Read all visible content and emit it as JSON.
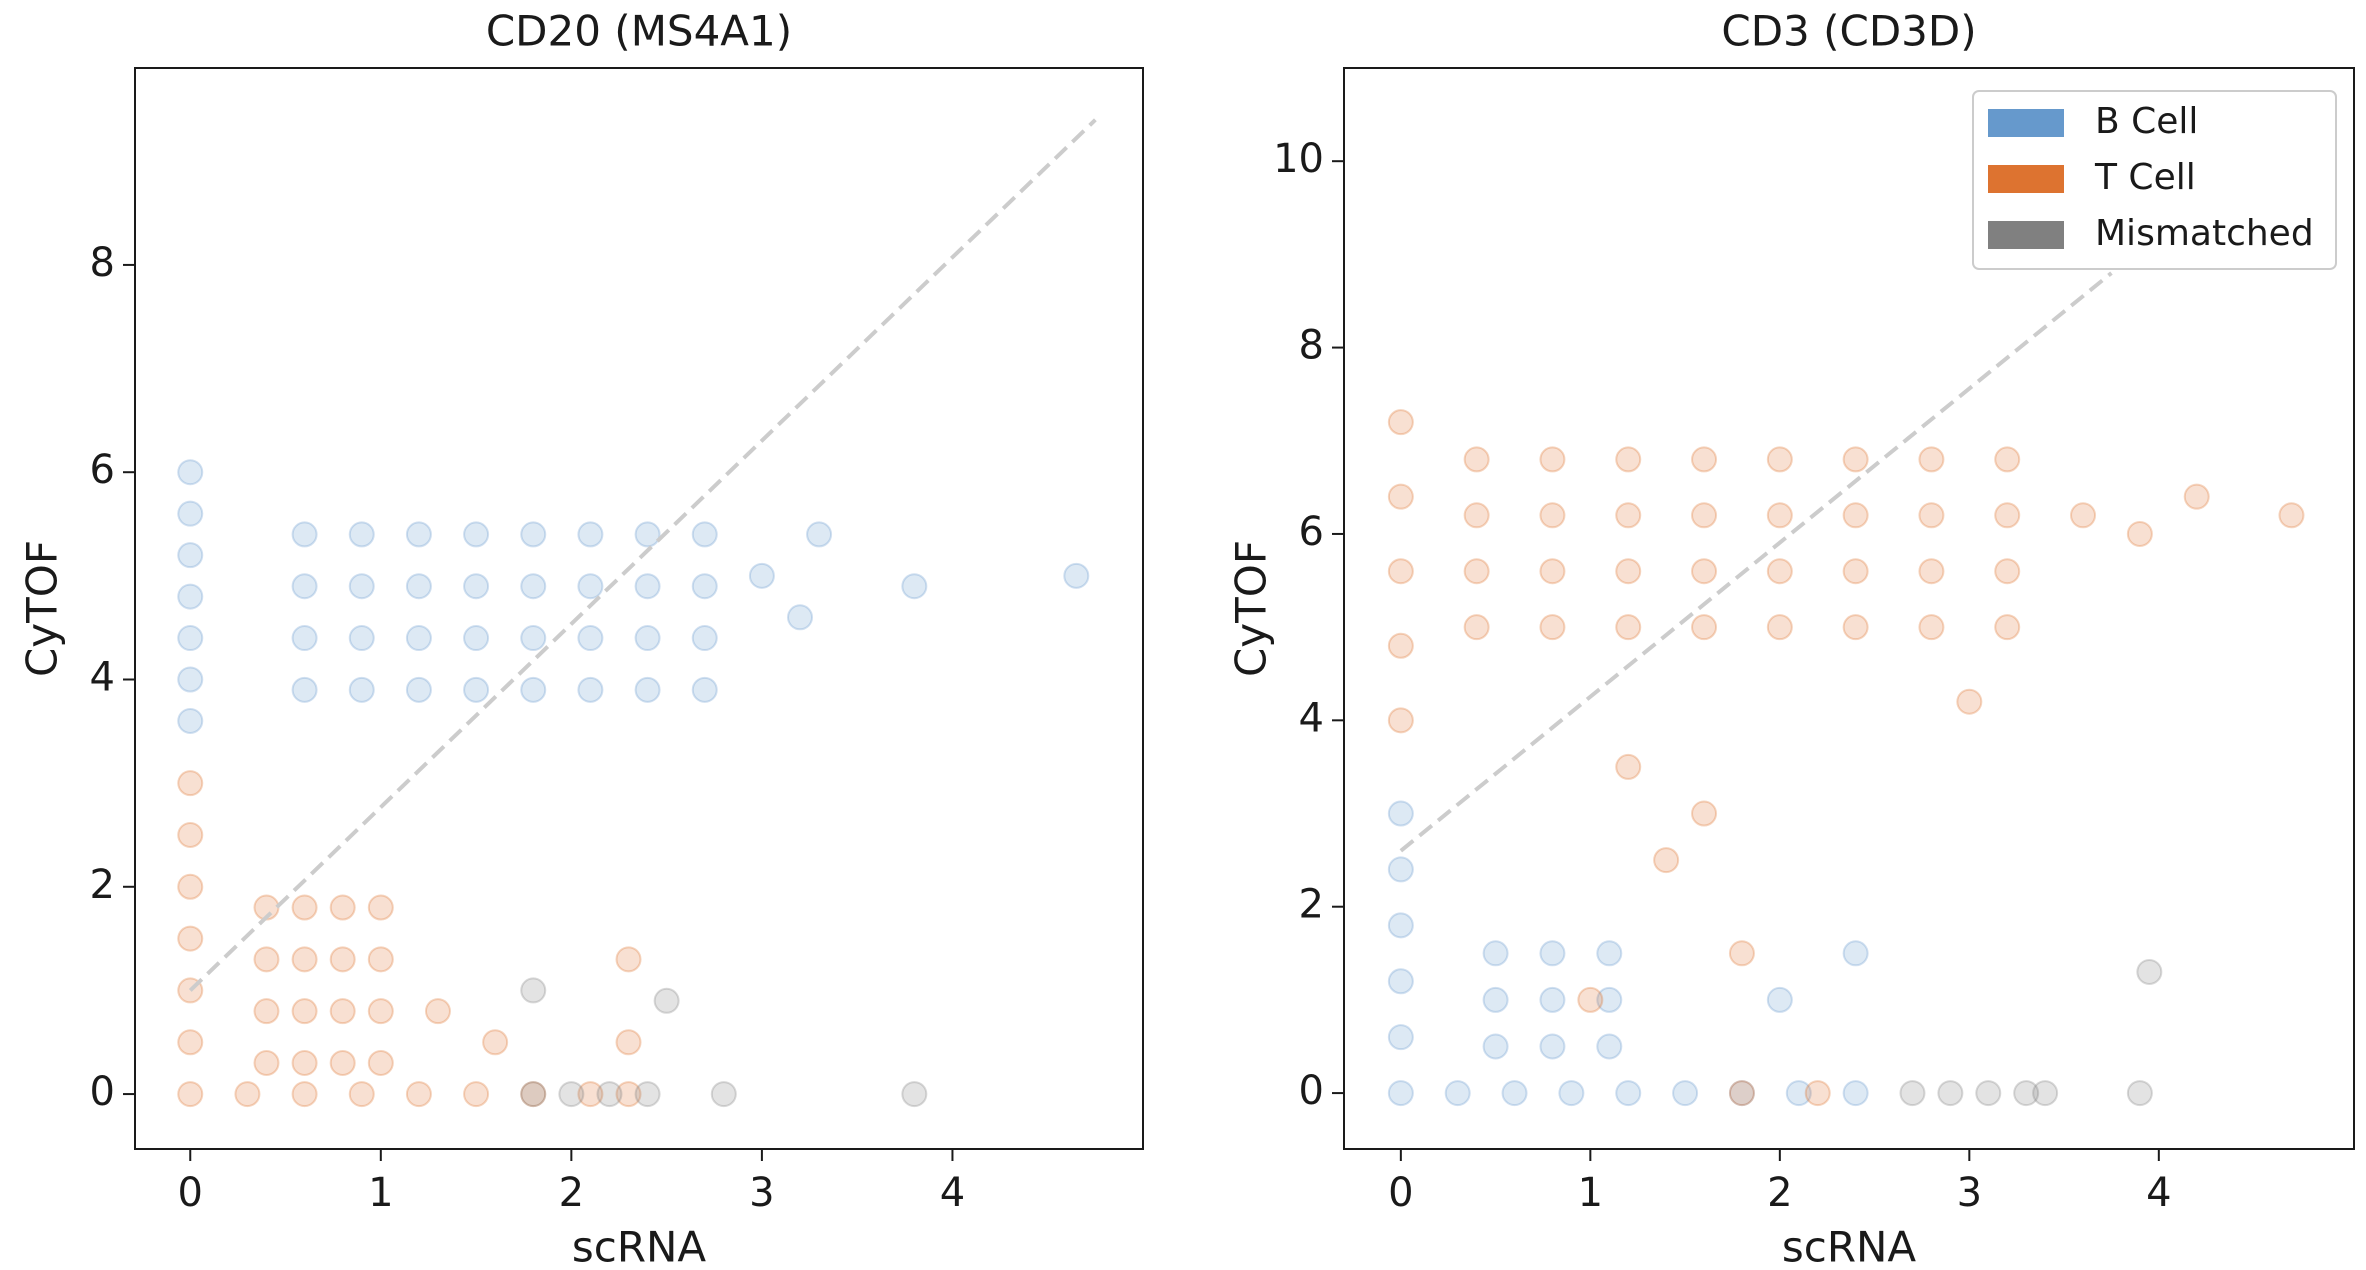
{
  "chart_data": [
    {
      "type": "scatter",
      "title": "CD20 (MS4A1)",
      "xlabel": "scRNA",
      "ylabel": "CyTOF",
      "xlim": [
        -0.29,
        5.0
      ],
      "ylim": [
        -0.53,
        9.9
      ],
      "xticks": [
        0,
        1,
        2,
        3,
        4
      ],
      "yticks": [
        0,
        2,
        4,
        6,
        8
      ],
      "reference_line": {
        "x": [
          0,
          4.75
        ],
        "y": [
          1,
          9.4
        ],
        "color": "#cccccc",
        "style": "dashed"
      },
      "series": [
        {
          "color": "#6699cc",
          "x": [
            0,
            0,
            0,
            0,
            0,
            0,
            0,
            0.6,
            0.9,
            1.2,
            1.5,
            1.8,
            2.1,
            2.4,
            2.7,
            0.6,
            0.9,
            1.2,
            1.5,
            1.8,
            2.1,
            2.4,
            2.7,
            0.6,
            0.9,
            1.2,
            1.5,
            1.8,
            2.1,
            2.4,
            2.7,
            0.6,
            0.9,
            1.2,
            1.5,
            1.8,
            2.1,
            2.4,
            2.7,
            3.0,
            3.2,
            3.8,
            4.65,
            3.3
          ],
          "y": [
            3.6,
            4.0,
            4.4,
            4.8,
            5.2,
            5.6,
            6.0,
            3.9,
            3.9,
            3.9,
            3.9,
            3.9,
            3.9,
            3.9,
            3.9,
            4.4,
            4.4,
            4.4,
            4.4,
            4.4,
            4.4,
            4.4,
            4.4,
            4.9,
            4.9,
            4.9,
            4.9,
            4.9,
            4.9,
            4.9,
            4.9,
            5.4,
            5.4,
            5.4,
            5.4,
            5.4,
            5.4,
            5.4,
            5.4,
            5.0,
            4.6,
            4.9,
            5.0,
            5.4
          ]
        },
        {
          "color": "#dd7330",
          "x": [
            0,
            0,
            0,
            0,
            0,
            0,
            0,
            0.4,
            0.6,
            0.8,
            1.0,
            0.4,
            0.6,
            0.8,
            1.0,
            0.4,
            0.6,
            0.8,
            1.0,
            0.4,
            0.6,
            0.8,
            1.0,
            0.3,
            0.6,
            0.9,
            1.2,
            1.5,
            1.8,
            2.1,
            2.3,
            1.3,
            1.6,
            2.3,
            2.3
          ],
          "y": [
            0,
            0.5,
            1,
            1.5,
            2,
            2.5,
            3,
            0.3,
            0.3,
            0.3,
            0.3,
            0.8,
            0.8,
            0.8,
            0.8,
            1.3,
            1.3,
            1.3,
            1.3,
            1.8,
            1.8,
            1.8,
            1.8,
            0,
            0,
            0,
            0,
            0,
            0,
            0,
            0,
            0.8,
            0.5,
            1.3,
            0.5
          ]
        },
        {
          "color": "#808080",
          "x": [
            1.8,
            2.0,
            2.2,
            2.4,
            2.8,
            3.8,
            1.8,
            2.5
          ],
          "y": [
            0,
            0,
            0,
            0,
            0,
            0,
            1,
            0.9
          ]
        }
      ]
    },
    {
      "type": "scatter",
      "title": "CD3 (CD3D)",
      "xlabel": "scRNA",
      "ylabel": "CyTOF",
      "xlim": [
        -0.3,
        5.03
      ],
      "ylim": [
        -0.6,
        11.0
      ],
      "xticks": [
        0,
        1,
        2,
        3,
        4
      ],
      "yticks": [
        0,
        2,
        4,
        6,
        8,
        10
      ],
      "legend": "upper right",
      "reference_line": {
        "x": [
          0,
          3.75
        ],
        "y": [
          2.6,
          8.8
        ],
        "color": "#cccccc",
        "style": "dashed"
      },
      "series": [
        {
          "name": "B Cell",
          "color": "#6699cc",
          "x": [
            0,
            0,
            0,
            0,
            0,
            0,
            0.5,
            0.8,
            1.1,
            0.5,
            0.8,
            1.1,
            0.5,
            0.8,
            1.1,
            0.3,
            0.6,
            0.9,
            1.2,
            1.5,
            1.8,
            2.1,
            2.4,
            2.0,
            2.4
          ],
          "y": [
            0,
            0.6,
            1.2,
            1.8,
            2.4,
            3.0,
            0.5,
            0.5,
            0.5,
            1.0,
            1.0,
            1.0,
            1.5,
            1.5,
            1.5,
            0,
            0,
            0,
            0,
            0,
            0,
            0,
            0,
            1.0,
            1.5
          ]
        },
        {
          "name": "T Cell",
          "color": "#dd7330",
          "x": [
            0,
            0,
            0,
            0,
            0,
            0.4,
            0.8,
            1.2,
            1.6,
            2.0,
            2.4,
            2.8,
            3.2,
            0.4,
            0.8,
            1.2,
            1.6,
            2.0,
            2.4,
            2.8,
            3.2,
            0.4,
            0.8,
            1.2,
            1.6,
            2.0,
            2.4,
            2.8,
            3.2,
            0.4,
            0.8,
            1.2,
            1.6,
            2.0,
            2.4,
            2.8,
            3.2,
            3.6,
            3.9,
            4.2,
            4.7,
            1.2,
            1.6,
            1.4,
            1.8,
            1.0,
            2.2,
            1.8,
            3.0
          ],
          "y": [
            4,
            4.8,
            5.6,
            6.4,
            7.2,
            5.0,
            5.0,
            5.0,
            5.0,
            5.0,
            5.0,
            5.0,
            5.0,
            5.6,
            5.6,
            5.6,
            5.6,
            5.6,
            5.6,
            5.6,
            5.6,
            6.2,
            6.2,
            6.2,
            6.2,
            6.2,
            6.2,
            6.2,
            6.2,
            6.8,
            6.8,
            6.8,
            6.8,
            6.8,
            6.8,
            6.8,
            6.8,
            6.2,
            6.0,
            6.4,
            6.2,
            3.5,
            3.0,
            2.5,
            1.5,
            1.0,
            0,
            0,
            4.2
          ]
        },
        {
          "name": "Mismatched",
          "color": "#808080",
          "x": [
            2.7,
            2.9,
            3.1,
            3.3,
            3.4,
            3.9,
            3.95
          ],
          "y": [
            0,
            0,
            0,
            0,
            0,
            0,
            1.3
          ]
        }
      ]
    }
  ]
}
